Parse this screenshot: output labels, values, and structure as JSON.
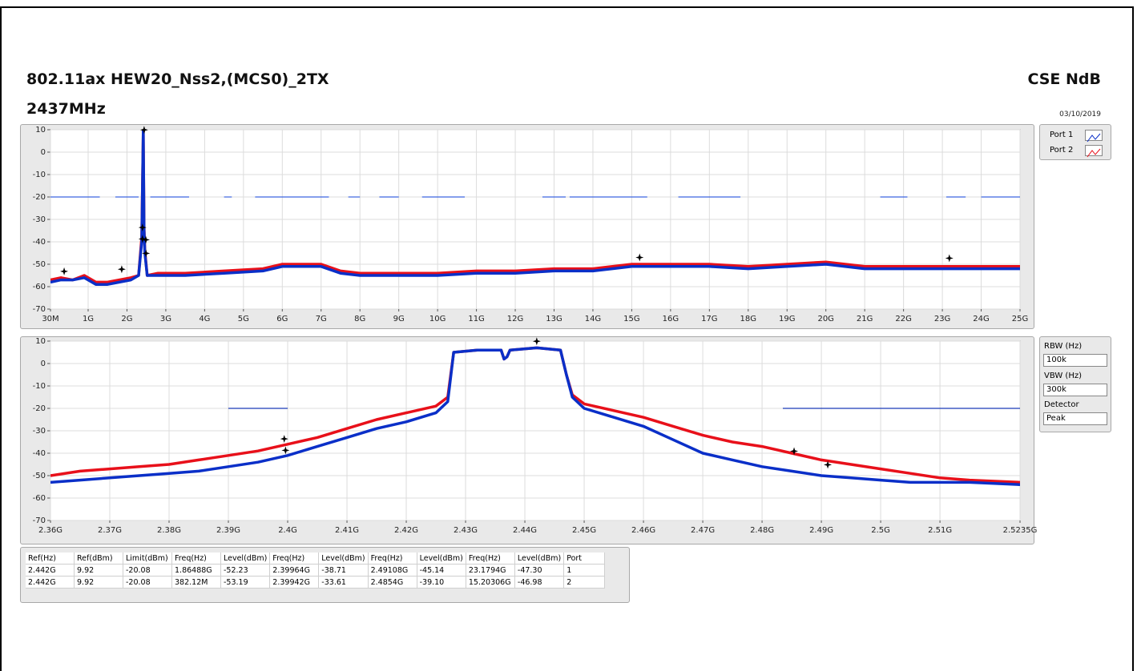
{
  "header": {
    "title": "802.11ax HEW20_Nss2,(MCS0)_2TX",
    "subtitle": "2437MHz",
    "right_title": "CSE NdB",
    "date": "03/10/2019"
  },
  "chart_data": [
    {
      "type": "line",
      "xlim": [
        30000000.0,
        25000000000.0
      ],
      "ylim": [
        -70,
        10
      ],
      "xticks": [
        {
          "value": 30000000.0,
          "label": "30M"
        },
        {
          "value": 1000000000.0,
          "label": "1G"
        },
        {
          "value": 2000000000.0,
          "label": "2G"
        },
        {
          "value": 3000000000.0,
          "label": "3G"
        },
        {
          "value": 4000000000.0,
          "label": "4G"
        },
        {
          "value": 5000000000.0,
          "label": "5G"
        },
        {
          "value": 6000000000.0,
          "label": "6G"
        },
        {
          "value": 7000000000.0,
          "label": "7G"
        },
        {
          "value": 8000000000.0,
          "label": "8G"
        },
        {
          "value": 9000000000.0,
          "label": "9G"
        },
        {
          "value": 10000000000.0,
          "label": "10G"
        },
        {
          "value": 11000000000.0,
          "label": "11G"
        },
        {
          "value": 12000000000.0,
          "label": "12G"
        },
        {
          "value": 13000000000.0,
          "label": "13G"
        },
        {
          "value": 14000000000.0,
          "label": "14G"
        },
        {
          "value": 15000000000.0,
          "label": "15G"
        },
        {
          "value": 16000000000.0,
          "label": "16G"
        },
        {
          "value": 17000000000.0,
          "label": "17G"
        },
        {
          "value": 18000000000.0,
          "label": "18G"
        },
        {
          "value": 19000000000.0,
          "label": "19G"
        },
        {
          "value": 20000000000.0,
          "label": "20G"
        },
        {
          "value": 21000000000.0,
          "label": "21G"
        },
        {
          "value": 22000000000.0,
          "label": "22G"
        },
        {
          "value": 23000000000.0,
          "label": "23G"
        },
        {
          "value": 24000000000.0,
          "label": "24G"
        },
        {
          "value": 25000000000.0,
          "label": "25G"
        }
      ],
      "yticks": [
        10,
        0,
        -10,
        -20,
        -30,
        -40,
        -50,
        -60,
        -70
      ],
      "grid": true,
      "x": [
        30000000.0,
        300000000.0,
        600000000.0,
        900000000.0,
        1200000000.0,
        1500000000.0,
        1800000000.0,
        2100000000.0,
        2300000000.0,
        2380000000.0,
        2420000000.0,
        2440000000.0,
        2460000000.0,
        2520000000.0,
        2800000000.0,
        3500000000.0,
        4500000000.0,
        5500000000.0,
        6000000000.0,
        6500000000.0,
        7000000000.0,
        7500000000.0,
        8000000000.0,
        9000000000.0,
        10000000000.0,
        11000000000.0,
        12000000000.0,
        13000000000.0,
        14000000000.0,
        15000000000.0,
        16000000000.0,
        17000000000.0,
        18000000000.0,
        19000000000.0,
        20000000000.0,
        21000000000.0,
        22000000000.0,
        23000000000.0,
        24000000000.0,
        25000000000.0
      ],
      "series": [
        {
          "name": "Port 2",
          "color": "#e8101a",
          "values": [
            -57,
            -56,
            -57,
            -55,
            -58,
            -58,
            -57,
            -56,
            -55,
            -38,
            9,
            -34,
            -44,
            -55,
            -54,
            -54,
            -53,
            -52,
            -50,
            -50,
            -50,
            -53,
            -54,
            -54,
            -54,
            -53,
            -53,
            -52,
            -52,
            -50,
            -50,
            -50,
            -51,
            -50,
            -49,
            -51,
            -51,
            -51,
            -51,
            -51
          ]
        },
        {
          "name": "Port 1",
          "color": "#0a2fc8",
          "values": [
            -58,
            -57,
            -57,
            -56,
            -59,
            -59,
            -58,
            -57,
            -55,
            -40,
            10,
            -35,
            -45,
            -55,
            -55,
            -55,
            -54,
            -53,
            -51,
            -51,
            -51,
            -54,
            -55,
            -55,
            -55,
            -54,
            -54,
            -53,
            -53,
            -51,
            -51,
            -51,
            -52,
            -51,
            -50,
            -52,
            -52,
            -52,
            -52,
            -52
          ]
        }
      ],
      "limit": {
        "value": -20,
        "color": "#3c64e0",
        "segments": [
          [
            30000000.0,
            1300000000.0
          ],
          [
            1700000000.0,
            2300000000.0
          ],
          [
            2600000000.0,
            3600000000.0
          ],
          [
            4500000000.0,
            4700000000.0
          ],
          [
            5300000000.0,
            7200000000.0
          ],
          [
            7700000000.0,
            8000000000.0
          ],
          [
            8500000000.0,
            9000000000.0
          ],
          [
            9600000000.0,
            10700000000.0
          ],
          [
            12700000000.0,
            13300000000.0
          ],
          [
            13400000000.0,
            15400000000.0
          ],
          [
            16200000000.0,
            17800000000.0
          ],
          [
            21400000000.0,
            22100000000.0
          ],
          [
            23100000000.0,
            23600000000.0
          ],
          [
            24000000000.0,
            25000000000.0
          ]
        ]
      },
      "markers": {
        "x": [
          2442000000.0,
          382120000.0,
          1864880000.0,
          2399640000.0,
          2399420000.0,
          2491080000.0,
          2485400000.0,
          15203060000.0,
          23179400000.0
        ],
        "y": [
          9.92,
          -53.19,
          -52.23,
          -38.71,
          -33.61,
          -45.14,
          -39.1,
          -46.98,
          -47.3
        ]
      }
    },
    {
      "type": "line",
      "xlim": [
        2360000000.0,
        2523500000.0
      ],
      "ylim": [
        -70,
        10
      ],
      "xticks": [
        {
          "value": 2360000000.0,
          "label": "2.36G"
        },
        {
          "value": 2370000000.0,
          "label": "2.37G"
        },
        {
          "value": 2380000000.0,
          "label": "2.38G"
        },
        {
          "value": 2390000000.0,
          "label": "2.39G"
        },
        {
          "value": 2400000000.0,
          "label": "2.4G"
        },
        {
          "value": 2410000000.0,
          "label": "2.41G"
        },
        {
          "value": 2420000000.0,
          "label": "2.42G"
        },
        {
          "value": 2430000000.0,
          "label": "2.43G"
        },
        {
          "value": 2440000000.0,
          "label": "2.44G"
        },
        {
          "value": 2450000000.0,
          "label": "2.45G"
        },
        {
          "value": 2460000000.0,
          "label": "2.46G"
        },
        {
          "value": 2470000000.0,
          "label": "2.47G"
        },
        {
          "value": 2480000000.0,
          "label": "2.48G"
        },
        {
          "value": 2490000000.0,
          "label": "2.49G"
        },
        {
          "value": 2500000000.0,
          "label": "2.5G"
        },
        {
          "value": 2510000000.0,
          "label": "2.51G"
        },
        {
          "value": 2523500000.0,
          "label": "2.5235G"
        }
      ],
      "yticks": [
        10,
        0,
        -10,
        -20,
        -30,
        -40,
        -50,
        -60,
        -70
      ],
      "grid": true,
      "x": [
        2360000000.0,
        2365000000.0,
        2370000000.0,
        2375000000.0,
        2380000000.0,
        2385000000.0,
        2390000000.0,
        2395000000.0,
        2400000000.0,
        2405000000.0,
        2410000000.0,
        2415000000.0,
        2420000000.0,
        2425000000.0,
        2427000000.0,
        2428000000.0,
        2432000000.0,
        2436000000.0,
        2436500000.0,
        2437000000.0,
        2437500000.0,
        2442000000.0,
        2446000000.0,
        2447000000.0,
        2448000000.0,
        2450000000.0,
        2455000000.0,
        2460000000.0,
        2465000000.0,
        2470000000.0,
        2475000000.0,
        2480000000.0,
        2485000000.0,
        2490000000.0,
        2495000000.0,
        2500000000.0,
        2505000000.0,
        2510000000.0,
        2515000000.0,
        2523500000.0
      ],
      "series": [
        {
          "name": "Port 2",
          "color": "#e8101a",
          "values": [
            -50,
            -48,
            -47,
            -46,
            -45,
            -43,
            -41,
            -39,
            -36,
            -33,
            -29,
            -25,
            -22,
            -19,
            -15,
            5,
            6,
            6,
            2,
            3,
            6,
            7,
            6,
            -5,
            -14,
            -18,
            -21,
            -24,
            -28,
            -32,
            -35,
            -37,
            -40,
            -43,
            -45,
            -47,
            -49,
            -51,
            -52,
            -53
          ]
        },
        {
          "name": "Port 1",
          "color": "#0a2fc8",
          "values": [
            -53,
            -52,
            -51,
            -50,
            -49,
            -48,
            -46,
            -44,
            -41,
            -37,
            -33,
            -29,
            -26,
            -22,
            -17,
            5,
            6,
            6,
            2,
            3,
            6,
            7,
            6,
            -5,
            -15,
            -20,
            -24,
            -28,
            -34,
            -40,
            -43,
            -46,
            -48,
            -50,
            -51,
            -52,
            -53,
            -53,
            -53,
            -54
          ]
        }
      ],
      "limit": {
        "value": -20,
        "color": "#1a3ab8",
        "segments": [
          [
            2390000000.0,
            2400000000.0
          ],
          [
            2483500000.0,
            2523500000.0
          ]
        ]
      },
      "markers": {
        "x": [
          2442000000.0,
          2399640000.0,
          2399420000.0,
          2491080000.0,
          2485400000.0
        ],
        "y": [
          9.92,
          -38.71,
          -33.61,
          -45.14,
          -39.1
        ]
      }
    }
  ],
  "settings": {
    "rbw_label": "RBW (Hz)",
    "rbw": "100k",
    "vbw_label": "VBW (Hz)",
    "vbw": "300k",
    "detector_label": "Detector",
    "detector": "Peak"
  },
  "table": {
    "columns": [
      "Ref(Hz)",
      "Ref(dBm)",
      "Limit(dBm)",
      "Freq(Hz)",
      "Level(dBm)",
      "Freq(Hz)",
      "Level(dBm)",
      "Freq(Hz)",
      "Level(dBm)",
      "Freq(Hz)",
      "Level(dBm)",
      "Port"
    ],
    "rows": [
      [
        "2.442G",
        "9.92",
        "-20.08",
        "1.86488G",
        "-52.23",
        "2.39964G",
        "-38.71",
        "2.49108G",
        "-45.14",
        "23.1794G",
        "-47.30",
        "1"
      ],
      [
        "2.442G",
        "9.92",
        "-20.08",
        "382.12M",
        "-53.19",
        "2.39942G",
        "-33.61",
        "2.4854G",
        "-39.10",
        "15.20306G",
        "-46.98",
        "2"
      ]
    ]
  }
}
